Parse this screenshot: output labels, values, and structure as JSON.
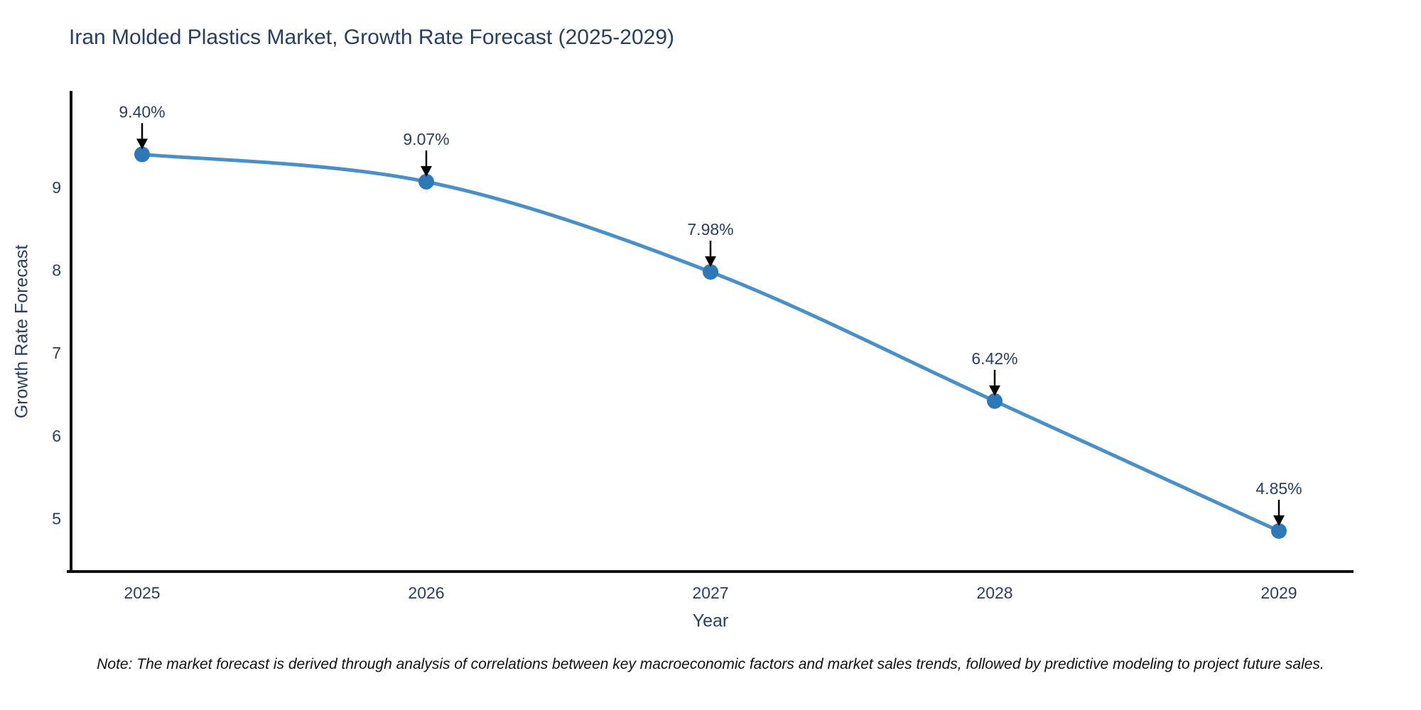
{
  "page": {
    "note": "Note: The market forecast is derived through analysis of correlations between key macroeconomic factors and market sales trends, followed by predictive modeling to project future sales."
  },
  "chart_data": {
    "type": "line",
    "title": "Iran Molded Plastics Market, Growth Rate Forecast (2025-2029)",
    "xlabel": "Year",
    "ylabel": "Growth Rate Forecast",
    "categories": [
      "2025",
      "2026",
      "2027",
      "2028",
      "2029"
    ],
    "series": [
      {
        "name": "Growth Rate Forecast",
        "values": [
          9.4,
          9.07,
          7.98,
          6.42,
          4.85
        ]
      }
    ],
    "data_labels": [
      "9.40%",
      "9.07%",
      "7.98%",
      "6.42%",
      "4.85%"
    ],
    "y_ticks": [
      5,
      6,
      7,
      8,
      9
    ],
    "ylim": [
      4.36,
      10.15
    ],
    "grid": false,
    "legend_position": "none",
    "line_shape": "spline",
    "marker_style": "circle",
    "annotation_style": "down-arrow",
    "colors": {
      "line": "#4a8fc5",
      "marker": "#2f78b8",
      "axis": "#111111",
      "text": "#2a3f5f",
      "arrow": "#000000",
      "background": "#ffffff"
    }
  }
}
